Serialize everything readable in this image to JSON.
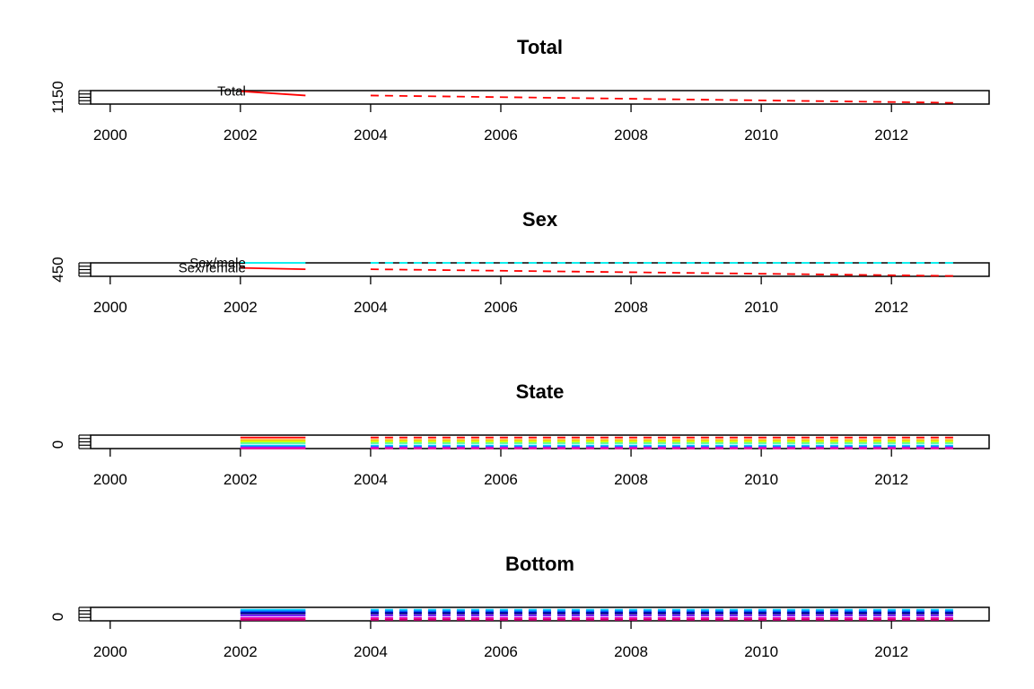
{
  "chart_data": [
    {
      "type": "line",
      "title": "Total",
      "xlabel": "",
      "ylabel": "",
      "xlim": [
        1999.7,
        2013.5
      ],
      "ylim": [
        1138,
        1160
      ],
      "x_ticks": [
        "2000",
        "2002",
        "2004",
        "2006",
        "2008",
        "2010",
        "2012"
      ],
      "y_tick_labels": [
        "1150"
      ],
      "fitted_x": [
        2002,
        2003
      ],
      "forecast_x": [
        2004,
        2013
      ],
      "series": [
        {
          "label": "Total",
          "color": "#ff0000",
          "fitted": [
            1159,
            1152
          ],
          "forecast": [
            1152,
            1140
          ]
        }
      ]
    },
    {
      "type": "line",
      "title": "Sex",
      "xlabel": "",
      "ylabel": "",
      "xlim": [
        1999.7,
        2013.5
      ],
      "ylim": [
        440,
        480
      ],
      "x_ticks": [
        "2000",
        "2002",
        "2004",
        "2006",
        "2008",
        "2010",
        "2012"
      ],
      "y_tick_labels": [
        "450"
      ],
      "fitted_x": [
        2002,
        2003
      ],
      "forecast_x": [
        2004,
        2013
      ],
      "series": [
        {
          "label": "Sex/male",
          "color": "#00ffff",
          "fitted": [
            480,
            480
          ],
          "forecast": [
            480,
            480
          ]
        },
        {
          "label": "Sex/female",
          "color": "#ff0000",
          "fitted": [
            465,
            461
          ],
          "forecast": [
            461,
            441
          ]
        }
      ]
    },
    {
      "type": "line",
      "title": "State",
      "xlabel": "",
      "ylabel": "",
      "xlim": [
        1999.7,
        2013.5
      ],
      "ylim": [
        0,
        100
      ],
      "x_ticks": [
        "2000",
        "2002",
        "2004",
        "2006",
        "2008",
        "2010",
        "2012"
      ],
      "y_tick_labels": [
        "0"
      ],
      "fitted_x": [
        2002,
        2003
      ],
      "forecast_x": [
        2004,
        2013
      ],
      "series": [
        {
          "label": "",
          "color": "#ff0000",
          "fitted": [
            82,
            82
          ],
          "forecast": [
            82,
            82
          ]
        },
        {
          "label": "",
          "color": "#ffaa00",
          "fitted": [
            64,
            64
          ],
          "forecast": [
            64,
            64
          ]
        },
        {
          "label": "",
          "color": "#ccff00",
          "fitted": [
            52,
            52
          ],
          "forecast": [
            52,
            52
          ]
        },
        {
          "label": "",
          "color": "#55ff88",
          "fitted": [
            40,
            40
          ],
          "forecast": [
            40,
            40
          ]
        },
        {
          "label": "",
          "color": "#00ccff",
          "fitted": [
            22,
            22
          ],
          "forecast": [
            22,
            22
          ]
        },
        {
          "label": "",
          "color": "#3355ff",
          "fitted": [
            12,
            12
          ],
          "forecast": [
            12,
            12
          ]
        },
        {
          "label": "",
          "color": "#aa00ff",
          "fitted": [
            6,
            6
          ],
          "forecast": [
            6,
            6
          ]
        },
        {
          "label": "",
          "color": "#ff00aa",
          "fitted": [
            2,
            2
          ],
          "forecast": [
            2,
            2
          ]
        }
      ]
    },
    {
      "type": "line",
      "title": "Bottom",
      "xlabel": "",
      "ylabel": "",
      "xlim": [
        1999.7,
        2013.5
      ],
      "ylim": [
        0,
        100
      ],
      "x_ticks": [
        "2000",
        "2002",
        "2004",
        "2006",
        "2008",
        "2010",
        "2012"
      ],
      "y_tick_labels": [
        "0"
      ],
      "fitted_x": [
        2002,
        2003
      ],
      "forecast_x": [
        2004,
        2013
      ],
      "series": [
        {
          "label": "",
          "color": "#00ccff",
          "fitted": [
            82,
            82
          ],
          "forecast": [
            82,
            82
          ]
        },
        {
          "label": "",
          "color": "#0088ff",
          "fitted": [
            72,
            72
          ],
          "forecast": [
            72,
            72
          ]
        },
        {
          "label": "",
          "color": "#0000cc",
          "fitted": [
            62,
            62
          ],
          "forecast": [
            62,
            62
          ]
        },
        {
          "label": "",
          "color": "#000088",
          "fitted": [
            54,
            54
          ],
          "forecast": [
            54,
            54
          ]
        },
        {
          "label": "",
          "color": "#6600ff",
          "fitted": [
            40,
            40
          ],
          "forecast": [
            40,
            40
          ]
        },
        {
          "label": "",
          "color": "#cc00cc",
          "fitted": [
            22,
            22
          ],
          "forecast": [
            22,
            22
          ]
        },
        {
          "label": "",
          "color": "#ff0088",
          "fitted": [
            14,
            14
          ],
          "forecast": [
            14,
            14
          ]
        },
        {
          "label": "",
          "color": "#aa0066",
          "fitted": [
            6,
            6
          ],
          "forecast": [
            6,
            6
          ]
        }
      ]
    }
  ]
}
